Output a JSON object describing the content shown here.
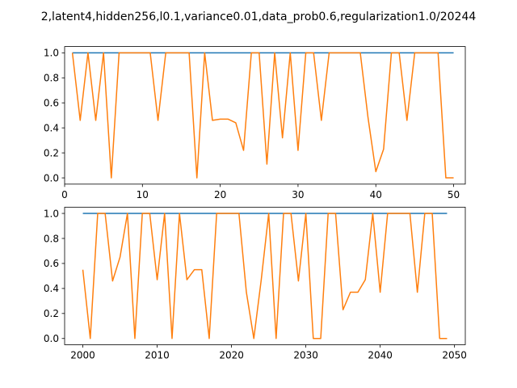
{
  "title": "2,latent4,hidden256,l0.1,variance0.01,data_prob0.6,regularization1.0/20244",
  "chart_data": [
    {
      "type": "line",
      "x": [
        1,
        2,
        3,
        4,
        5,
        6,
        7,
        8,
        9,
        10,
        11,
        12,
        13,
        14,
        15,
        16,
        17,
        18,
        19,
        20,
        21,
        22,
        23,
        24,
        25,
        26,
        27,
        28,
        29,
        30,
        31,
        32,
        33,
        34,
        35,
        36,
        37,
        38,
        39,
        40,
        41,
        42,
        43,
        44,
        45,
        46,
        47,
        48,
        49,
        50
      ],
      "series": [
        {
          "color": "#1f77b4",
          "values": [
            1,
            1,
            1,
            1,
            1,
            1,
            1,
            1,
            1,
            1,
            1,
            1,
            1,
            1,
            1,
            1,
            1,
            1,
            1,
            1,
            1,
            1,
            1,
            1,
            1,
            1,
            1,
            1,
            1,
            1,
            1,
            1,
            1,
            1,
            1,
            1,
            1,
            1,
            1,
            1,
            1,
            1,
            1,
            1,
            1,
            1,
            1,
            1,
            1,
            1
          ]
        },
        {
          "color": "#ff7f0e",
          "values": [
            1,
            0.46,
            1,
            0.46,
            1,
            0,
            1,
            1,
            1,
            1,
            1,
            0.46,
            1,
            1,
            1,
            1,
            0,
            1,
            0.46,
            0.47,
            0.47,
            0.44,
            0.22,
            1,
            1,
            0.11,
            1,
            0.32,
            1,
            0.22,
            1,
            1,
            0.46,
            1,
            1,
            1,
            1,
            1,
            0.48,
            0.05,
            0.23,
            1,
            1,
            0.46,
            1,
            1,
            1,
            1,
            0,
            0
          ]
        }
      ],
      "xlim": [
        0,
        51.5
      ],
      "ylim": [
        -0.05,
        1.05
      ],
      "xticks": [
        0,
        10,
        20,
        30,
        40,
        50
      ],
      "yticks": [
        0.0,
        0.2,
        0.4,
        0.6,
        0.8,
        1.0
      ],
      "xtick_labels": [
        "0",
        "10",
        "20",
        "30",
        "40",
        "50"
      ],
      "ytick_labels": [
        "0.0",
        "0.2",
        "0.4",
        "0.6",
        "0.8",
        "1.0"
      ]
    },
    {
      "type": "line",
      "x": [
        2000,
        2001,
        2002,
        2003,
        2004,
        2005,
        2006,
        2007,
        2008,
        2009,
        2010,
        2011,
        2012,
        2013,
        2014,
        2015,
        2016,
        2017,
        2018,
        2019,
        2020,
        2021,
        2022,
        2023,
        2024,
        2025,
        2026,
        2027,
        2028,
        2029,
        2030,
        2031,
        2032,
        2033,
        2034,
        2035,
        2036,
        2037,
        2038,
        2039,
        2040,
        2041,
        2042,
        2043,
        2044,
        2045,
        2046,
        2047,
        2048,
        2049
      ],
      "series": [
        {
          "color": "#1f77b4",
          "values": [
            1,
            1,
            1,
            1,
            1,
            1,
            1,
            1,
            1,
            1,
            1,
            1,
            1,
            1,
            1,
            1,
            1,
            1,
            1,
            1,
            1,
            1,
            1,
            1,
            1,
            1,
            1,
            1,
            1,
            1,
            1,
            1,
            1,
            1,
            1,
            1,
            1,
            1,
            1,
            1,
            1,
            1,
            1,
            1,
            1,
            1,
            1,
            1,
            1,
            1
          ]
        },
        {
          "color": "#ff7f0e",
          "values": [
            0.55,
            0,
            1,
            1,
            0.46,
            0.65,
            1,
            0,
            1,
            1,
            0.47,
            1,
            0,
            1,
            0.47,
            0.55,
            0.55,
            0,
            1,
            1,
            1,
            1,
            0.37,
            0,
            0.47,
            1,
            0,
            1,
            1,
            0.46,
            1,
            0,
            0,
            1,
            1,
            0.23,
            0.37,
            0.37,
            0.47,
            1,
            0.37,
            1,
            1,
            1,
            1,
            0.37,
            1,
            1,
            0,
            0
          ]
        }
      ],
      "xlim": [
        1997.55,
        2051.45
      ],
      "ylim": [
        -0.05,
        1.05
      ],
      "xticks": [
        2000,
        2010,
        2020,
        2030,
        2040,
        2050
      ],
      "yticks": [
        0.0,
        0.2,
        0.4,
        0.6,
        0.8,
        1.0
      ],
      "xtick_labels": [
        "2000",
        "2010",
        "2020",
        "2030",
        "2040",
        "2050"
      ],
      "ytick_labels": [
        "0.0",
        "0.2",
        "0.4",
        "0.6",
        "0.8",
        "1.0"
      ]
    }
  ]
}
